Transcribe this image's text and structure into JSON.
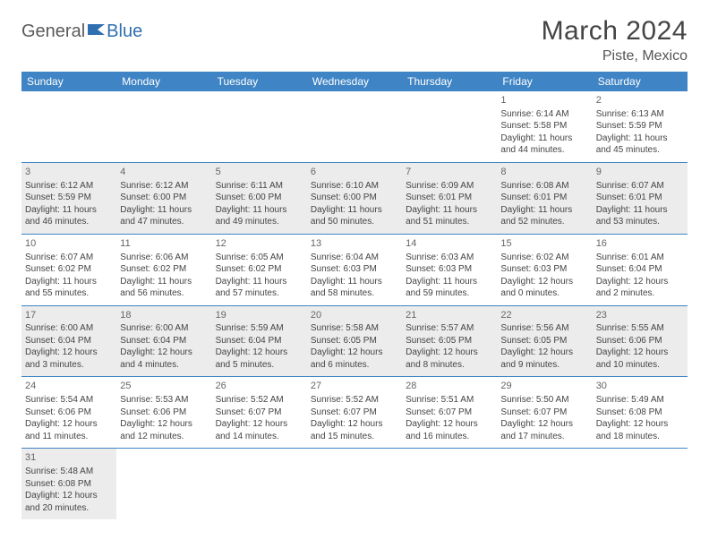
{
  "brand": {
    "general": "General",
    "blue": "Blue"
  },
  "title": "March 2024",
  "location": "Piste, Mexico",
  "colors": {
    "header_bg": "#3f84c4",
    "header_text": "#ffffff",
    "row_alt_bg": "#ececec",
    "body_bg": "#ffffff",
    "text": "#444444",
    "brand_gray": "#5a5a5a",
    "brand_blue": "#2f6fb0",
    "rule": "#3f84c4"
  },
  "typography": {
    "title_fontsize": 30,
    "location_fontsize": 16,
    "dayheader_fontsize": 12,
    "cell_fontsize": 10
  },
  "day_headers": [
    "Sunday",
    "Monday",
    "Tuesday",
    "Wednesday",
    "Thursday",
    "Friday",
    "Saturday"
  ],
  "weeks": [
    {
      "shade": "white",
      "cells": [
        null,
        null,
        null,
        null,
        null,
        {
          "n": "1",
          "sr": "Sunrise: 6:14 AM",
          "ss": "Sunset: 5:58 PM",
          "dl1": "Daylight: 11 hours",
          "dl2": "and 44 minutes."
        },
        {
          "n": "2",
          "sr": "Sunrise: 6:13 AM",
          "ss": "Sunset: 5:59 PM",
          "dl1": "Daylight: 11 hours",
          "dl2": "and 45 minutes."
        }
      ]
    },
    {
      "shade": "gray",
      "cells": [
        {
          "n": "3",
          "sr": "Sunrise: 6:12 AM",
          "ss": "Sunset: 5:59 PM",
          "dl1": "Daylight: 11 hours",
          "dl2": "and 46 minutes."
        },
        {
          "n": "4",
          "sr": "Sunrise: 6:12 AM",
          "ss": "Sunset: 6:00 PM",
          "dl1": "Daylight: 11 hours",
          "dl2": "and 47 minutes."
        },
        {
          "n": "5",
          "sr": "Sunrise: 6:11 AM",
          "ss": "Sunset: 6:00 PM",
          "dl1": "Daylight: 11 hours",
          "dl2": "and 49 minutes."
        },
        {
          "n": "6",
          "sr": "Sunrise: 6:10 AM",
          "ss": "Sunset: 6:00 PM",
          "dl1": "Daylight: 11 hours",
          "dl2": "and 50 minutes."
        },
        {
          "n": "7",
          "sr": "Sunrise: 6:09 AM",
          "ss": "Sunset: 6:01 PM",
          "dl1": "Daylight: 11 hours",
          "dl2": "and 51 minutes."
        },
        {
          "n": "8",
          "sr": "Sunrise: 6:08 AM",
          "ss": "Sunset: 6:01 PM",
          "dl1": "Daylight: 11 hours",
          "dl2": "and 52 minutes."
        },
        {
          "n": "9",
          "sr": "Sunrise: 6:07 AM",
          "ss": "Sunset: 6:01 PM",
          "dl1": "Daylight: 11 hours",
          "dl2": "and 53 minutes."
        }
      ]
    },
    {
      "shade": "white",
      "cells": [
        {
          "n": "10",
          "sr": "Sunrise: 6:07 AM",
          "ss": "Sunset: 6:02 PM",
          "dl1": "Daylight: 11 hours",
          "dl2": "and 55 minutes."
        },
        {
          "n": "11",
          "sr": "Sunrise: 6:06 AM",
          "ss": "Sunset: 6:02 PM",
          "dl1": "Daylight: 11 hours",
          "dl2": "and 56 minutes."
        },
        {
          "n": "12",
          "sr": "Sunrise: 6:05 AM",
          "ss": "Sunset: 6:02 PM",
          "dl1": "Daylight: 11 hours",
          "dl2": "and 57 minutes."
        },
        {
          "n": "13",
          "sr": "Sunrise: 6:04 AM",
          "ss": "Sunset: 6:03 PM",
          "dl1": "Daylight: 11 hours",
          "dl2": "and 58 minutes."
        },
        {
          "n": "14",
          "sr": "Sunrise: 6:03 AM",
          "ss": "Sunset: 6:03 PM",
          "dl1": "Daylight: 11 hours",
          "dl2": "and 59 minutes."
        },
        {
          "n": "15",
          "sr": "Sunrise: 6:02 AM",
          "ss": "Sunset: 6:03 PM",
          "dl1": "Daylight: 12 hours",
          "dl2": "and 0 minutes."
        },
        {
          "n": "16",
          "sr": "Sunrise: 6:01 AM",
          "ss": "Sunset: 6:04 PM",
          "dl1": "Daylight: 12 hours",
          "dl2": "and 2 minutes."
        }
      ]
    },
    {
      "shade": "gray",
      "cells": [
        {
          "n": "17",
          "sr": "Sunrise: 6:00 AM",
          "ss": "Sunset: 6:04 PM",
          "dl1": "Daylight: 12 hours",
          "dl2": "and 3 minutes."
        },
        {
          "n": "18",
          "sr": "Sunrise: 6:00 AM",
          "ss": "Sunset: 6:04 PM",
          "dl1": "Daylight: 12 hours",
          "dl2": "and 4 minutes."
        },
        {
          "n": "19",
          "sr": "Sunrise: 5:59 AM",
          "ss": "Sunset: 6:04 PM",
          "dl1": "Daylight: 12 hours",
          "dl2": "and 5 minutes."
        },
        {
          "n": "20",
          "sr": "Sunrise: 5:58 AM",
          "ss": "Sunset: 6:05 PM",
          "dl1": "Daylight: 12 hours",
          "dl2": "and 6 minutes."
        },
        {
          "n": "21",
          "sr": "Sunrise: 5:57 AM",
          "ss": "Sunset: 6:05 PM",
          "dl1": "Daylight: 12 hours",
          "dl2": "and 8 minutes."
        },
        {
          "n": "22",
          "sr": "Sunrise: 5:56 AM",
          "ss": "Sunset: 6:05 PM",
          "dl1": "Daylight: 12 hours",
          "dl2": "and 9 minutes."
        },
        {
          "n": "23",
          "sr": "Sunrise: 5:55 AM",
          "ss": "Sunset: 6:06 PM",
          "dl1": "Daylight: 12 hours",
          "dl2": "and 10 minutes."
        }
      ]
    },
    {
      "shade": "white",
      "cells": [
        {
          "n": "24",
          "sr": "Sunrise: 5:54 AM",
          "ss": "Sunset: 6:06 PM",
          "dl1": "Daylight: 12 hours",
          "dl2": "and 11 minutes."
        },
        {
          "n": "25",
          "sr": "Sunrise: 5:53 AM",
          "ss": "Sunset: 6:06 PM",
          "dl1": "Daylight: 12 hours",
          "dl2": "and 12 minutes."
        },
        {
          "n": "26",
          "sr": "Sunrise: 5:52 AM",
          "ss": "Sunset: 6:07 PM",
          "dl1": "Daylight: 12 hours",
          "dl2": "and 14 minutes."
        },
        {
          "n": "27",
          "sr": "Sunrise: 5:52 AM",
          "ss": "Sunset: 6:07 PM",
          "dl1": "Daylight: 12 hours",
          "dl2": "and 15 minutes."
        },
        {
          "n": "28",
          "sr": "Sunrise: 5:51 AM",
          "ss": "Sunset: 6:07 PM",
          "dl1": "Daylight: 12 hours",
          "dl2": "and 16 minutes."
        },
        {
          "n": "29",
          "sr": "Sunrise: 5:50 AM",
          "ss": "Sunset: 6:07 PM",
          "dl1": "Daylight: 12 hours",
          "dl2": "and 17 minutes."
        },
        {
          "n": "30",
          "sr": "Sunrise: 5:49 AM",
          "ss": "Sunset: 6:08 PM",
          "dl1": "Daylight: 12 hours",
          "dl2": "and 18 minutes."
        }
      ]
    },
    {
      "shade": "gray",
      "last": true,
      "cells": [
        {
          "n": "31",
          "sr": "Sunrise: 5:48 AM",
          "ss": "Sunset: 6:08 PM",
          "dl1": "Daylight: 12 hours",
          "dl2": "and 20 minutes."
        },
        null,
        null,
        null,
        null,
        null,
        null
      ]
    }
  ]
}
